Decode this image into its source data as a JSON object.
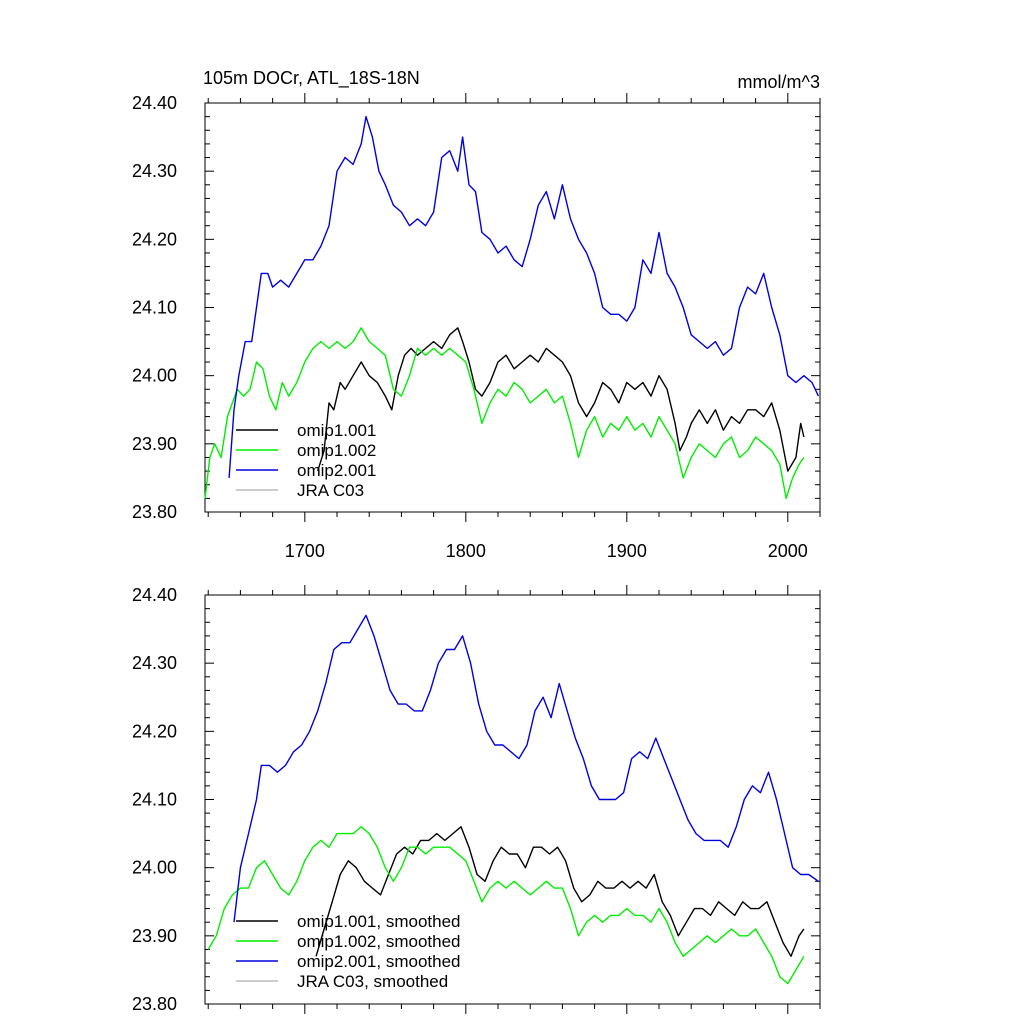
{
  "figure": {
    "title": "105m DOCr, ATL_18S-18N",
    "units": "mmol/m^3"
  },
  "chart_data": [
    {
      "type": "line",
      "panel": "top",
      "title": "105m DOCr, ATL_18S-18N",
      "units": "mmol/m^3",
      "xlabel": "",
      "ylabel": "",
      "xlim": [
        1638,
        2020
      ],
      "ylim": [
        23.8,
        24.4
      ],
      "xticks": [
        1700,
        1800,
        1900,
        2000
      ],
      "xtick_labels": [
        "1700",
        "1800",
        "1900",
        "2000"
      ],
      "yticks": [
        23.8,
        23.9,
        24.0,
        24.1,
        24.2,
        24.3,
        24.4
      ],
      "ytick_labels": [
        "23.80",
        "23.90",
        "24.00",
        "24.10",
        "24.20",
        "24.30",
        "24.40"
      ],
      "legend": {
        "placement": "bottom-left"
      },
      "series": [
        {
          "name": "omip1.001",
          "color": "#000000",
          "x": [
            1708,
            1712,
            1715,
            1718,
            1722,
            1725,
            1730,
            1735,
            1740,
            1745,
            1750,
            1754,
            1758,
            1762,
            1766,
            1770,
            1775,
            1780,
            1785,
            1790,
            1795,
            1798,
            1802,
            1806,
            1810,
            1815,
            1820,
            1825,
            1830,
            1835,
            1840,
            1845,
            1850,
            1855,
            1860,
            1865,
            1870,
            1875,
            1880,
            1885,
            1890,
            1895,
            1900,
            1905,
            1910,
            1915,
            1920,
            1925,
            1930,
            1933,
            1937,
            1940,
            1945,
            1950,
            1955,
            1960,
            1965,
            1970,
            1975,
            1980,
            1985,
            1990,
            1995,
            2000,
            2005,
            2008,
            2010
          ],
          "y": [
            23.86,
            23.89,
            23.96,
            23.95,
            23.99,
            23.98,
            24.0,
            24.02,
            24.0,
            23.99,
            23.97,
            23.95,
            24.0,
            24.03,
            24.04,
            24.03,
            24.04,
            24.05,
            24.04,
            24.06,
            24.07,
            24.05,
            24.02,
            23.98,
            23.97,
            23.99,
            24.02,
            24.03,
            24.01,
            24.02,
            24.03,
            24.02,
            24.04,
            24.03,
            24.02,
            24.0,
            23.96,
            23.94,
            23.96,
            23.99,
            23.98,
            23.96,
            23.99,
            23.98,
            23.99,
            23.97,
            24.0,
            23.98,
            23.93,
            23.89,
            23.91,
            23.93,
            23.95,
            23.93,
            23.95,
            23.92,
            23.94,
            23.93,
            23.95,
            23.95,
            23.94,
            23.96,
            23.92,
            23.86,
            23.88,
            23.93,
            23.91
          ]
        },
        {
          "name": "omip1.002",
          "color": "#00ee00",
          "x": [
            1638,
            1641,
            1644,
            1648,
            1652,
            1655,
            1658,
            1662,
            1666,
            1670,
            1674,
            1678,
            1682,
            1686,
            1690,
            1695,
            1700,
            1705,
            1710,
            1715,
            1720,
            1725,
            1730,
            1735,
            1740,
            1745,
            1750,
            1755,
            1760,
            1765,
            1770,
            1775,
            1780,
            1785,
            1790,
            1795,
            1800,
            1805,
            1810,
            1815,
            1820,
            1825,
            1830,
            1835,
            1840,
            1845,
            1850,
            1855,
            1860,
            1865,
            1870,
            1875,
            1880,
            1885,
            1890,
            1895,
            1900,
            1905,
            1910,
            1915,
            1920,
            1925,
            1930,
            1935,
            1940,
            1945,
            1950,
            1955,
            1960,
            1965,
            1970,
            1975,
            1980,
            1985,
            1990,
            1995,
            1999,
            2003,
            2007,
            2010
          ],
          "y": [
            23.82,
            23.88,
            23.9,
            23.88,
            23.94,
            23.96,
            23.98,
            23.97,
            23.98,
            24.02,
            24.01,
            23.97,
            23.95,
            23.99,
            23.97,
            23.99,
            24.02,
            24.04,
            24.05,
            24.04,
            24.05,
            24.04,
            24.05,
            24.07,
            24.05,
            24.04,
            24.03,
            23.98,
            23.97,
            24.0,
            24.04,
            24.03,
            24.04,
            24.03,
            24.04,
            24.03,
            24.02,
            23.98,
            23.93,
            23.96,
            23.98,
            23.97,
            23.99,
            23.98,
            23.96,
            23.97,
            23.98,
            23.96,
            23.97,
            23.93,
            23.88,
            23.92,
            23.94,
            23.91,
            23.93,
            23.92,
            23.94,
            23.92,
            23.93,
            23.91,
            23.94,
            23.92,
            23.9,
            23.85,
            23.88,
            23.9,
            23.89,
            23.88,
            23.9,
            23.91,
            23.88,
            23.89,
            23.91,
            23.9,
            23.89,
            23.87,
            23.82,
            23.85,
            23.87,
            23.88
          ]
        },
        {
          "name": "omip2.001",
          "color": "#0000dd",
          "x": [
            1653,
            1656,
            1659,
            1663,
            1667,
            1670,
            1673,
            1677,
            1680,
            1685,
            1690,
            1695,
            1700,
            1705,
            1710,
            1715,
            1720,
            1725,
            1730,
            1735,
            1738,
            1742,
            1746,
            1750,
            1755,
            1760,
            1765,
            1770,
            1775,
            1780,
            1785,
            1790,
            1795,
            1798,
            1802,
            1806,
            1810,
            1815,
            1820,
            1825,
            1830,
            1835,
            1840,
            1845,
            1850,
            1855,
            1860,
            1865,
            1870,
            1875,
            1880,
            1885,
            1890,
            1895,
            1900,
            1905,
            1910,
            1915,
            1920,
            1925,
            1930,
            1935,
            1940,
            1945,
            1950,
            1955,
            1960,
            1965,
            1970,
            1975,
            1980,
            1985,
            1990,
            1995,
            2000,
            2005,
            2010,
            2015,
            2019
          ],
          "y": [
            23.85,
            23.95,
            24.0,
            24.05,
            24.05,
            24.1,
            24.15,
            24.15,
            24.13,
            24.14,
            24.13,
            24.15,
            24.17,
            24.17,
            24.19,
            24.22,
            24.3,
            24.32,
            24.31,
            24.34,
            24.38,
            24.35,
            24.3,
            24.28,
            24.25,
            24.24,
            24.22,
            24.23,
            24.22,
            24.24,
            24.32,
            24.33,
            24.3,
            24.35,
            24.28,
            24.27,
            24.21,
            24.2,
            24.18,
            24.19,
            24.17,
            24.16,
            24.2,
            24.25,
            24.27,
            24.23,
            24.28,
            24.23,
            24.2,
            24.18,
            24.15,
            24.1,
            24.09,
            24.09,
            24.08,
            24.1,
            24.17,
            24.15,
            24.21,
            24.15,
            24.13,
            24.1,
            24.06,
            24.05,
            24.04,
            24.05,
            24.03,
            24.04,
            24.1,
            24.13,
            24.12,
            24.15,
            24.1,
            24.06,
            24.0,
            23.99,
            24.0,
            23.99,
            23.97
          ]
        },
        {
          "name": "JRA C03",
          "color": "#bbbbbb",
          "x": [],
          "y": []
        }
      ]
    },
    {
      "type": "line",
      "panel": "bottom",
      "title": "",
      "xlabel": "",
      "ylabel": "",
      "xlim": [
        1638,
        2020
      ],
      "ylim": [
        23.8,
        24.4
      ],
      "xticks": [
        1700,
        1800,
        1900,
        2000
      ],
      "yticks": [
        23.8,
        23.9,
        24.0,
        24.1,
        24.2,
        24.3,
        24.4
      ],
      "ytick_labels": [
        "23.80",
        "23.90",
        "24.00",
        "24.10",
        "24.20",
        "24.30",
        "24.40"
      ],
      "legend": {
        "placement": "bottom-left"
      },
      "series": [
        {
          "name": "omip1.001, smoothed",
          "color": "#000000",
          "x": [
            1707,
            1712,
            1717,
            1722,
            1727,
            1732,
            1737,
            1742,
            1747,
            1752,
            1757,
            1762,
            1767,
            1772,
            1777,
            1782,
            1787,
            1792,
            1797,
            1802,
            1807,
            1812,
            1817,
            1822,
            1827,
            1832,
            1837,
            1842,
            1847,
            1852,
            1857,
            1862,
            1867,
            1872,
            1877,
            1882,
            1887,
            1892,
            1897,
            1902,
            1907,
            1912,
            1917,
            1922,
            1927,
            1932,
            1937,
            1942,
            1947,
            1952,
            1957,
            1962,
            1967,
            1972,
            1977,
            1982,
            1987,
            1992,
            1997,
            2002,
            2007,
            2010
          ],
          "y": [
            23.87,
            23.91,
            23.95,
            23.99,
            24.01,
            24.0,
            23.98,
            23.97,
            23.96,
            23.99,
            24.02,
            24.03,
            24.02,
            24.04,
            24.04,
            24.05,
            24.04,
            24.05,
            24.06,
            24.03,
            23.99,
            23.98,
            24.01,
            24.03,
            24.02,
            24.02,
            24.0,
            24.03,
            24.03,
            24.02,
            24.03,
            24.01,
            23.97,
            23.95,
            23.96,
            23.98,
            23.97,
            23.97,
            23.98,
            23.97,
            23.98,
            23.97,
            23.99,
            23.95,
            23.93,
            23.9,
            23.92,
            23.94,
            23.94,
            23.93,
            23.95,
            23.94,
            23.93,
            23.95,
            23.94,
            23.94,
            23.95,
            23.92,
            23.89,
            23.87,
            23.9,
            23.91
          ]
        },
        {
          "name": "omip1.002, smoothed",
          "color": "#00ee00",
          "x": [
            1640,
            1645,
            1650,
            1655,
            1660,
            1665,
            1670,
            1675,
            1680,
            1685,
            1690,
            1695,
            1700,
            1705,
            1710,
            1715,
            1720,
            1725,
            1730,
            1735,
            1740,
            1745,
            1750,
            1755,
            1760,
            1765,
            1770,
            1775,
            1780,
            1785,
            1790,
            1795,
            1800,
            1805,
            1810,
            1815,
            1820,
            1825,
            1830,
            1835,
            1840,
            1845,
            1850,
            1855,
            1860,
            1865,
            1870,
            1875,
            1880,
            1885,
            1890,
            1895,
            1900,
            1905,
            1910,
            1915,
            1920,
            1925,
            1930,
            1935,
            1940,
            1945,
            1950,
            1955,
            1960,
            1965,
            1970,
            1975,
            1980,
            1985,
            1990,
            1995,
            2000,
            2005,
            2010
          ],
          "y": [
            23.88,
            23.9,
            23.94,
            23.96,
            23.97,
            23.97,
            24.0,
            24.01,
            23.99,
            23.97,
            23.96,
            23.98,
            24.01,
            24.03,
            24.04,
            24.03,
            24.05,
            24.05,
            24.05,
            24.06,
            24.05,
            24.03,
            24.0,
            23.98,
            24.0,
            24.03,
            24.03,
            24.02,
            24.03,
            24.03,
            24.03,
            24.02,
            24.01,
            23.98,
            23.95,
            23.97,
            23.98,
            23.97,
            23.98,
            23.97,
            23.96,
            23.97,
            23.98,
            23.97,
            23.97,
            23.94,
            23.9,
            23.92,
            23.93,
            23.92,
            23.93,
            23.93,
            23.94,
            23.93,
            23.93,
            23.92,
            23.94,
            23.92,
            23.89,
            23.87,
            23.88,
            23.89,
            23.9,
            23.89,
            23.9,
            23.91,
            23.9,
            23.9,
            23.91,
            23.89,
            23.87,
            23.84,
            23.83,
            23.85,
            23.87
          ]
        },
        {
          "name": "omip2.001, smoothed",
          "color": "#0000dd",
          "x": [
            1656,
            1660,
            1665,
            1670,
            1673,
            1678,
            1683,
            1688,
            1693,
            1698,
            1703,
            1708,
            1713,
            1718,
            1723,
            1728,
            1733,
            1738,
            1743,
            1748,
            1753,
            1758,
            1763,
            1768,
            1773,
            1778,
            1783,
            1788,
            1793,
            1798,
            1803,
            1808,
            1813,
            1818,
            1823,
            1828,
            1833,
            1838,
            1843,
            1848,
            1853,
            1858,
            1863,
            1868,
            1873,
            1878,
            1883,
            1888,
            1893,
            1898,
            1903,
            1908,
            1913,
            1918,
            1923,
            1928,
            1933,
            1938,
            1943,
            1948,
            1953,
            1958,
            1963,
            1968,
            1973,
            1978,
            1983,
            1988,
            1993,
            1998,
            2003,
            2008,
            2013,
            2019
          ],
          "y": [
            23.92,
            24.0,
            24.05,
            24.1,
            24.15,
            24.15,
            24.14,
            24.15,
            24.17,
            24.18,
            24.2,
            24.23,
            24.27,
            24.32,
            24.33,
            24.33,
            24.35,
            24.37,
            24.34,
            24.3,
            24.26,
            24.24,
            24.24,
            24.23,
            24.23,
            24.26,
            24.3,
            24.32,
            24.32,
            24.34,
            24.3,
            24.24,
            24.2,
            24.18,
            24.18,
            24.17,
            24.16,
            24.18,
            24.23,
            24.25,
            24.22,
            24.27,
            24.23,
            24.19,
            24.16,
            24.12,
            24.1,
            24.1,
            24.1,
            24.11,
            24.16,
            24.17,
            24.16,
            24.19,
            24.16,
            24.13,
            24.1,
            24.07,
            24.05,
            24.04,
            24.04,
            24.04,
            24.03,
            24.06,
            24.1,
            24.12,
            24.11,
            24.14,
            24.1,
            24.05,
            24.0,
            23.99,
            23.99,
            23.98
          ]
        },
        {
          "name": "JRA C03, smoothed",
          "color": "#bbbbbb",
          "x": [],
          "y": []
        }
      ]
    }
  ]
}
